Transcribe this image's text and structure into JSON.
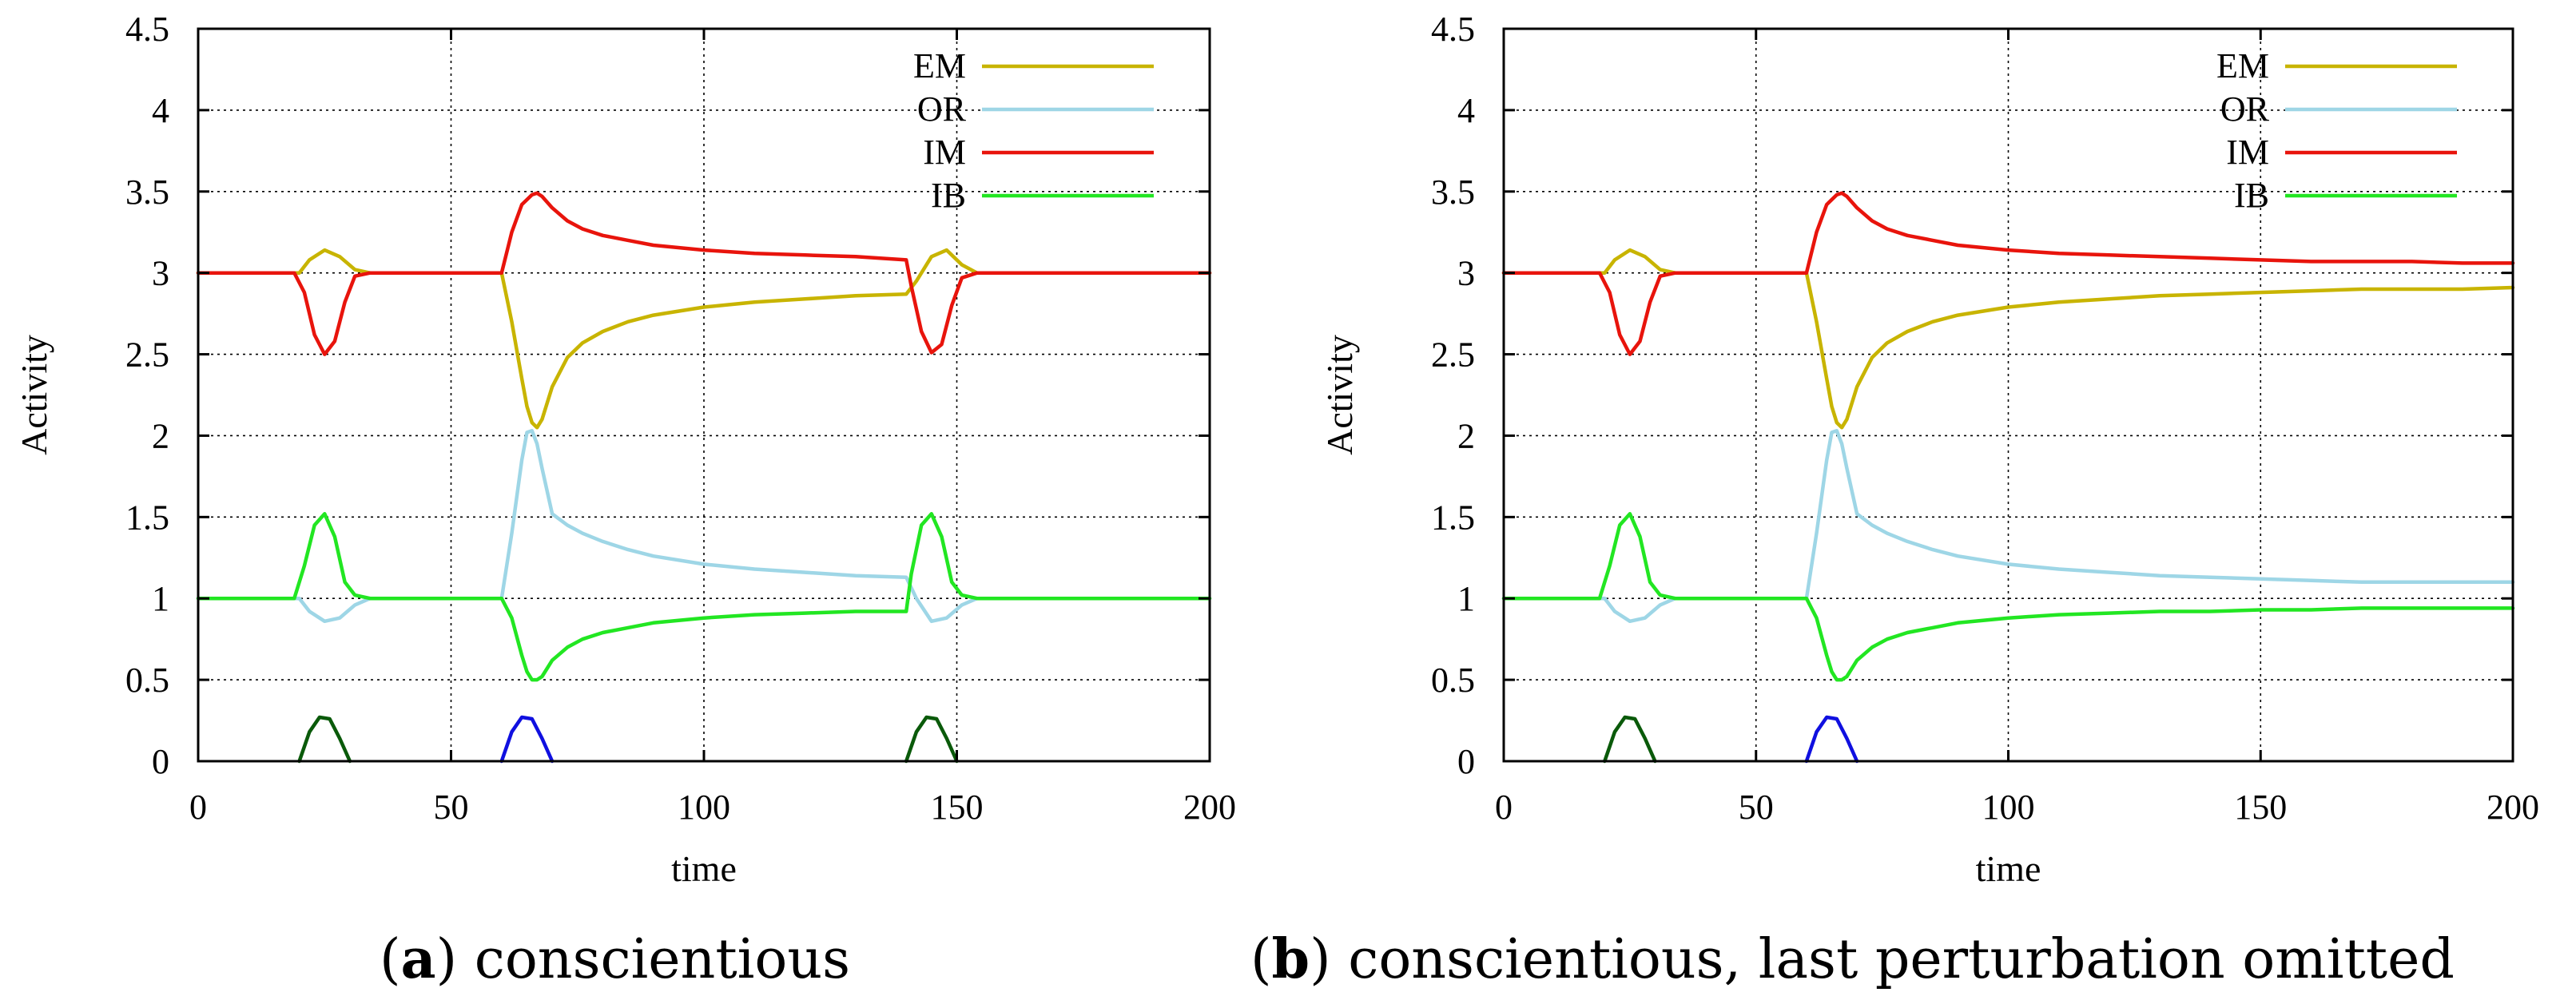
{
  "chart_data": [
    {
      "type": "line",
      "caption_tag": "a",
      "caption_text": "conscientious",
      "xlabel": "time",
      "ylabel": "Activity",
      "xlim": [
        0,
        200
      ],
      "ylim": [
        0,
        4.5
      ],
      "xticks": [
        "0",
        "50",
        "100",
        "150",
        "200"
      ],
      "yticks": [
        "0",
        "0.5",
        "1",
        "1.5",
        "2",
        "2.5",
        "3",
        "3.5",
        "4",
        "4.5"
      ],
      "grid": true,
      "legend": "top-right",
      "legend_entries": [
        "EM",
        "OR",
        "IM",
        "IB"
      ],
      "series": [
        {
          "name": "EM",
          "color": "#c8b400",
          "x": [
            0,
            20,
            22,
            25,
            28,
            31,
            34,
            60,
            62,
            64,
            65,
            66,
            67,
            68,
            70,
            73,
            76,
            80,
            85,
            90,
            100,
            110,
            120,
            130,
            140,
            142,
            145,
            148,
            151,
            154,
            200
          ],
          "y": [
            3,
            3,
            3.08,
            3.14,
            3.1,
            3.02,
            3,
            3,
            2.7,
            2.35,
            2.18,
            2.08,
            2.05,
            2.1,
            2.3,
            2.48,
            2.57,
            2.64,
            2.7,
            2.74,
            2.79,
            2.82,
            2.84,
            2.86,
            2.87,
            2.95,
            3.1,
            3.14,
            3.05,
            3,
            3
          ]
        },
        {
          "name": "OR",
          "color": "#9ed6e6",
          "x": [
            0,
            20,
            22,
            25,
            28,
            31,
            34,
            60,
            62,
            64,
            65,
            66,
            67,
            68,
            70,
            73,
            76,
            80,
            85,
            90,
            100,
            110,
            120,
            130,
            140,
            142,
            145,
            148,
            151,
            154,
            200
          ],
          "y": [
            1,
            1,
            0.92,
            0.86,
            0.88,
            0.96,
            1,
            1,
            1.4,
            1.85,
            2.02,
            2.03,
            1.95,
            1.8,
            1.52,
            1.45,
            1.4,
            1.35,
            1.3,
            1.26,
            1.21,
            1.18,
            1.16,
            1.14,
            1.13,
            1.0,
            0.86,
            0.88,
            0.96,
            1,
            1
          ]
        },
        {
          "name": "IM",
          "color": "#e8140c",
          "x": [
            0,
            19,
            21,
            23,
            25,
            27,
            29,
            31,
            34,
            60,
            62,
            64,
            66,
            67,
            68,
            70,
            73,
            76,
            80,
            85,
            90,
            100,
            110,
            120,
            130,
            140,
            141,
            143,
            145,
            147,
            149,
            151,
            154,
            200
          ],
          "y": [
            3,
            3,
            2.88,
            2.62,
            2.5,
            2.58,
            2.82,
            2.98,
            3,
            3,
            3.25,
            3.42,
            3.48,
            3.49,
            3.47,
            3.4,
            3.32,
            3.27,
            3.23,
            3.2,
            3.17,
            3.14,
            3.12,
            3.11,
            3.1,
            3.08,
            2.92,
            2.64,
            2.51,
            2.56,
            2.8,
            2.97,
            3,
            3
          ]
        },
        {
          "name": "IB",
          "color": "#22e622",
          "x": [
            0,
            19,
            21,
            23,
            25,
            27,
            29,
            31,
            34,
            60,
            62,
            64,
            65,
            66,
            67,
            68,
            70,
            73,
            76,
            80,
            85,
            90,
            100,
            110,
            120,
            130,
            140,
            141,
            143,
            145,
            147,
            149,
            151,
            154,
            200
          ],
          "y": [
            1,
            1,
            1.2,
            1.45,
            1.52,
            1.38,
            1.1,
            1.02,
            1,
            1,
            0.88,
            0.65,
            0.55,
            0.5,
            0.5,
            0.52,
            0.62,
            0.7,
            0.75,
            0.79,
            0.82,
            0.85,
            0.88,
            0.9,
            0.91,
            0.92,
            0.92,
            1.15,
            1.45,
            1.52,
            1.38,
            1.1,
            1.02,
            1,
            1
          ]
        },
        {
          "name": "",
          "color": "#0a5a0a",
          "x": [
            20,
            22,
            24,
            26,
            28,
            30
          ],
          "y": [
            0,
            0.18,
            0.27,
            0.26,
            0.14,
            0
          ]
        },
        {
          "name": "",
          "color": "#1010e0",
          "x": [
            60,
            62,
            64,
            66,
            68,
            70
          ],
          "y": [
            0,
            0.18,
            0.27,
            0.26,
            0.14,
            0
          ]
        },
        {
          "name": "",
          "color": "#0a5a0a",
          "x": [
            140,
            142,
            144,
            146,
            148,
            150
          ],
          "y": [
            0,
            0.18,
            0.27,
            0.26,
            0.14,
            0
          ]
        }
      ]
    },
    {
      "type": "line",
      "caption_tag": "b",
      "caption_text": "conscientious, last perturbation omitted",
      "xlabel": "time",
      "ylabel": "Activity",
      "xlim": [
        0,
        200
      ],
      "ylim": [
        0,
        4.5
      ],
      "xticks": [
        "0",
        "50",
        "100",
        "150",
        "200"
      ],
      "yticks": [
        "0",
        "0.5",
        "1",
        "1.5",
        "2",
        "2.5",
        "3",
        "3.5",
        "4",
        "4.5"
      ],
      "grid": true,
      "legend": "top-right",
      "legend_entries": [
        "EM",
        "OR",
        "IM",
        "IB"
      ],
      "series": [
        {
          "name": "EM",
          "color": "#c8b400",
          "x": [
            0,
            20,
            22,
            25,
            28,
            31,
            34,
            60,
            62,
            64,
            65,
            66,
            67,
            68,
            70,
            73,
            76,
            80,
            85,
            90,
            100,
            110,
            120,
            130,
            140,
            150,
            160,
            170,
            180,
            190,
            200
          ],
          "y": [
            3,
            3,
            3.08,
            3.14,
            3.1,
            3.02,
            3,
            3,
            2.7,
            2.35,
            2.18,
            2.08,
            2.05,
            2.1,
            2.3,
            2.48,
            2.57,
            2.64,
            2.7,
            2.74,
            2.79,
            2.82,
            2.84,
            2.86,
            2.87,
            2.88,
            2.89,
            2.9,
            2.9,
            2.9,
            2.91
          ]
        },
        {
          "name": "OR",
          "color": "#9ed6e6",
          "x": [
            0,
            20,
            22,
            25,
            28,
            31,
            34,
            60,
            62,
            64,
            65,
            66,
            67,
            68,
            70,
            73,
            76,
            80,
            85,
            90,
            100,
            110,
            120,
            130,
            140,
            150,
            160,
            170,
            180,
            190,
            200
          ],
          "y": [
            1,
            1,
            0.92,
            0.86,
            0.88,
            0.96,
            1,
            1,
            1.4,
            1.85,
            2.02,
            2.03,
            1.95,
            1.8,
            1.52,
            1.45,
            1.4,
            1.35,
            1.3,
            1.26,
            1.21,
            1.18,
            1.16,
            1.14,
            1.13,
            1.12,
            1.11,
            1.1,
            1.1,
            1.1,
            1.1
          ]
        },
        {
          "name": "IM",
          "color": "#e8140c",
          "x": [
            0,
            19,
            21,
            23,
            25,
            27,
            29,
            31,
            34,
            60,
            62,
            64,
            66,
            67,
            68,
            70,
            73,
            76,
            80,
            85,
            90,
            100,
            110,
            120,
            130,
            140,
            150,
            160,
            170,
            180,
            190,
            200
          ],
          "y": [
            3,
            3,
            2.88,
            2.62,
            2.5,
            2.58,
            2.82,
            2.98,
            3,
            3,
            3.25,
            3.42,
            3.48,
            3.49,
            3.47,
            3.4,
            3.32,
            3.27,
            3.23,
            3.2,
            3.17,
            3.14,
            3.12,
            3.11,
            3.1,
            3.09,
            3.08,
            3.07,
            3.07,
            3.07,
            3.06,
            3.06
          ]
        },
        {
          "name": "IB",
          "color": "#22e622",
          "x": [
            0,
            19,
            21,
            23,
            25,
            27,
            29,
            31,
            34,
            60,
            62,
            64,
            65,
            66,
            67,
            68,
            70,
            73,
            76,
            80,
            85,
            90,
            100,
            110,
            120,
            130,
            140,
            150,
            160,
            170,
            180,
            190,
            200
          ],
          "y": [
            1,
            1,
            1.2,
            1.45,
            1.52,
            1.38,
            1.1,
            1.02,
            1,
            1,
            0.88,
            0.65,
            0.55,
            0.5,
            0.5,
            0.52,
            0.62,
            0.7,
            0.75,
            0.79,
            0.82,
            0.85,
            0.88,
            0.9,
            0.91,
            0.92,
            0.92,
            0.93,
            0.93,
            0.94,
            0.94,
            0.94,
            0.94
          ]
        },
        {
          "name": "",
          "color": "#0a5a0a",
          "x": [
            20,
            22,
            24,
            26,
            28,
            30
          ],
          "y": [
            0,
            0.18,
            0.27,
            0.26,
            0.14,
            0
          ]
        },
        {
          "name": "",
          "color": "#1010e0",
          "x": [
            60,
            62,
            64,
            66,
            68,
            70
          ],
          "y": [
            0,
            0.18,
            0.27,
            0.26,
            0.14,
            0
          ]
        }
      ]
    }
  ]
}
